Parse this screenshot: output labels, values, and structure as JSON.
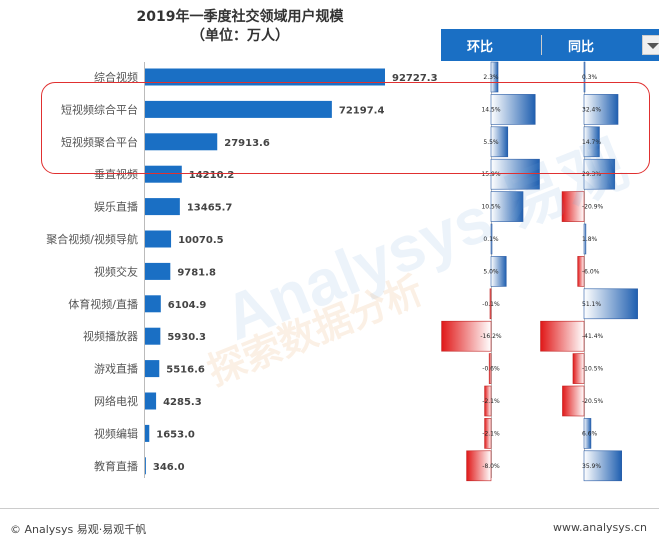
{
  "title": {
    "line1": "2019年一季度社交领域用户规模",
    "line2": "（单位：万人）"
  },
  "headers": {
    "huanbi": "环比",
    "tongbi": "同比"
  },
  "watermark": {
    "text1": "Analysys 易观",
    "text2": "探索数据分析"
  },
  "footer": {
    "left": "© Analysys 易观·易观千帆",
    "right": "www.analysys.cn"
  },
  "colors": {
    "bar": "#1a6fc4",
    "positive": "#2060b0",
    "negative": "#e02020",
    "header": "#1a6fc4",
    "highlight": "#e03030"
  },
  "chart_data": {
    "type": "bar",
    "orientation": "horizontal",
    "title": "2019年一季度社交领域用户规模",
    "subtitle": "（单位：万人）",
    "categories": [
      "综合视频",
      "短视频综合平台",
      "短视频聚合平台",
      "垂直视频",
      "娱乐直播",
      "聚合视频/视频导航",
      "视频交友",
      "体育视频/直播",
      "视频播放器",
      "游戏直播",
      "网络电视",
      "视频编辑",
      "教育直播"
    ],
    "values": [
      92727.3,
      72197.4,
      27913.6,
      14210.2,
      13465.7,
      10070.5,
      9781.8,
      6104.9,
      5930.3,
      5516.6,
      4285.3,
      1653.0,
      346.0
    ],
    "value_labels": [
      "92727.3",
      "72197.4",
      "27913.6",
      "14210.2",
      "13465.7",
      "10070.5",
      "9781.8",
      "6104.9",
      "5930.3",
      "5516.6",
      "4285.3",
      "1653.0",
      "346.0"
    ],
    "series": [
      {
        "name": "环比",
        "values": [
          2.3,
          14.5,
          5.5,
          15.9,
          10.5,
          0.1,
          5.0,
          -0.1,
          -16.2,
          -0.6,
          -2.1,
          -2.1,
          -8.0
        ],
        "labels": [
          "2.3%",
          "14.5%",
          "5.5%",
          "15.9%",
          "10.5%",
          "0.1%",
          "5.0%",
          "-0.1%",
          "-16.2%",
          "-0.6%",
          "-2.1%",
          "-2.1%",
          "-8.0%"
        ]
      },
      {
        "name": "同比",
        "values": [
          0.3,
          32.4,
          14.7,
          29.3,
          -20.9,
          1.8,
          -6.0,
          51.1,
          -41.4,
          -10.5,
          -20.5,
          6.6,
          35.9
        ],
        "labels": [
          "0.3%",
          "32.4%",
          "14.7%",
          "29.3%",
          "-20.9%",
          "1.8%",
          "-6.0%",
          "51.1%",
          "-41.4%",
          "-10.5%",
          "-20.5%",
          "6.6%",
          "35.9%"
        ]
      }
    ],
    "highlighted_categories": [
      "短视频综合平台",
      "短视频聚合平台"
    ]
  }
}
